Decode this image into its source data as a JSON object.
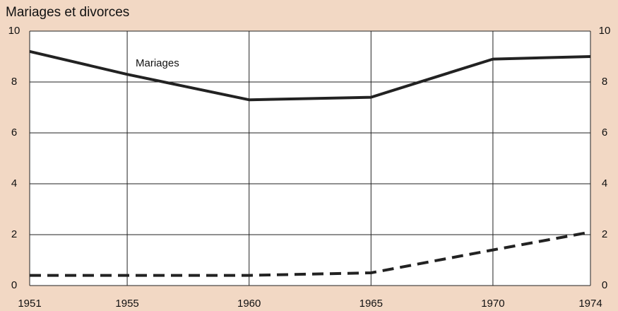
{
  "chart_data": {
    "type": "line",
    "title": "Mariages et divorces",
    "x": [
      1951,
      1955,
      1960,
      1965,
      1970,
      1974
    ],
    "series": [
      {
        "name": "Mariages",
        "color": "#222222",
        "dash": false,
        "values": [
          9.2,
          8.3,
          7.3,
          7.4,
          8.9,
          9.0
        ]
      },
      {
        "color": "#222222",
        "dash": true,
        "values": [
          0.4,
          0.4,
          0.4,
          0.5,
          1.4,
          2.1
        ]
      }
    ],
    "xlim": [
      1951,
      1974
    ],
    "xticks": [
      1951,
      1955,
      1960,
      1965,
      1970,
      1974
    ],
    "ylim": [
      0,
      10
    ],
    "yticks": [
      0,
      2,
      4,
      6,
      8,
      10
    ],
    "grid": true
  }
}
